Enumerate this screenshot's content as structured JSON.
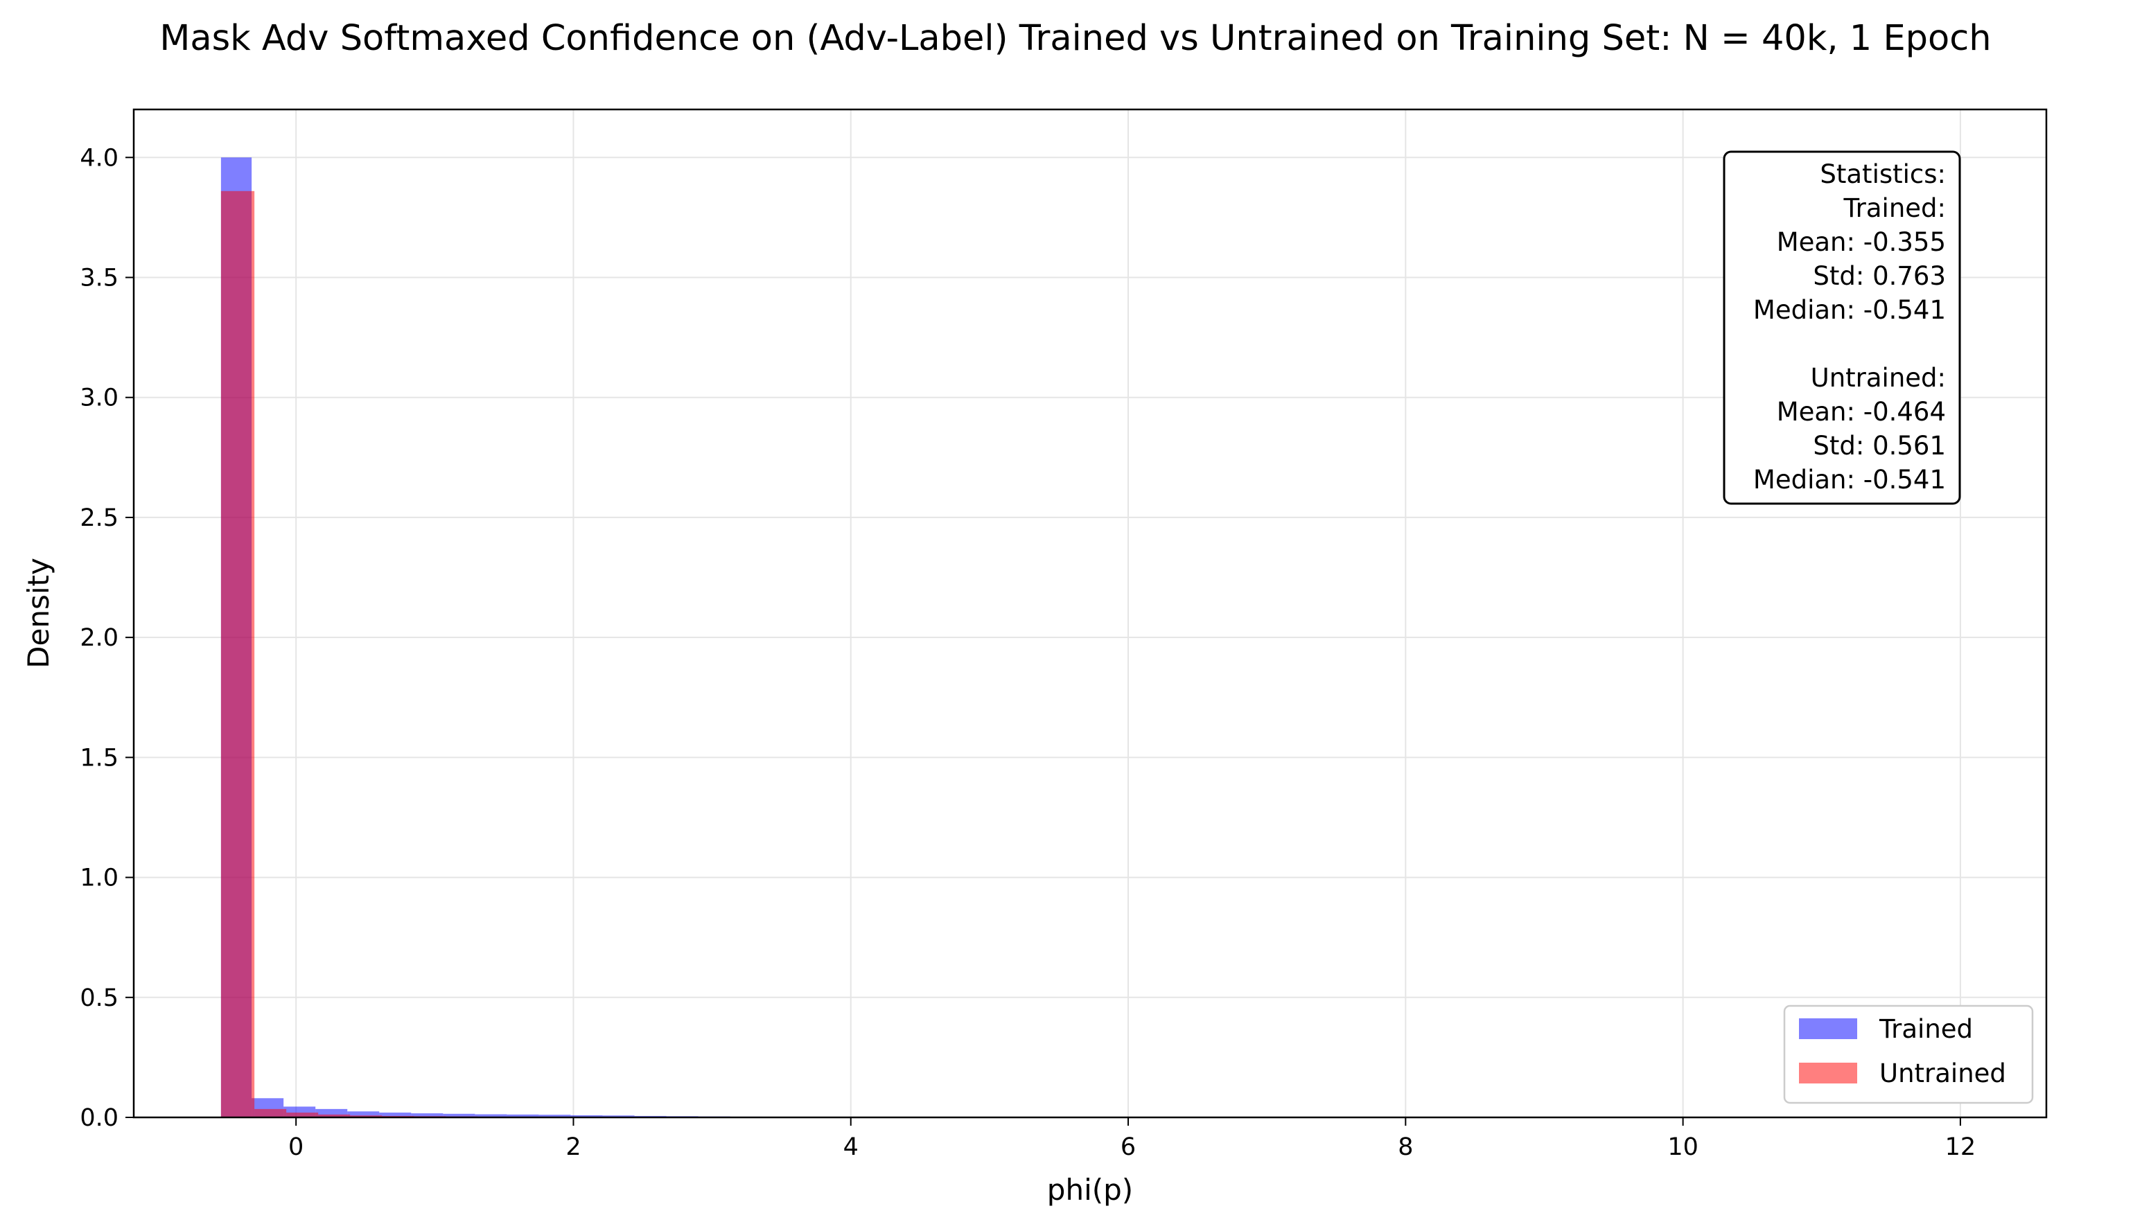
{
  "chart_data": {
    "type": "bar",
    "title": "Mask Adv Softmaxed Confidence on (Adv-Label) Trained vs Untrained on Training Set: N = 40k, 1 Epoch",
    "xlabel": "phi(p)",
    "ylabel": "Density",
    "xlim": [
      -1.17,
      12.62
    ],
    "ylim": [
      0,
      4.2
    ],
    "x_ticks": [
      0,
      2,
      4,
      6,
      8,
      10,
      12
    ],
    "x_tick_labels": [
      "0",
      "2",
      "4",
      "6",
      "8",
      "10",
      "12"
    ],
    "y_ticks": [
      0.0,
      0.5,
      1.0,
      1.5,
      2.0,
      2.5,
      3.0,
      3.5,
      4.0
    ],
    "y_tick_labels": [
      "0.0",
      "0.5",
      "1.0",
      "1.5",
      "2.0",
      "2.5",
      "3.0",
      "3.5",
      "4.0"
    ],
    "grid": true,
    "legend_position": "lower-right",
    "series": [
      {
        "name": "Trained",
        "color": "#0000ff",
        "bins": [
          {
            "x0": -0.541,
            "x1": -0.32,
            "density": 4.0
          },
          {
            "x0": -0.32,
            "x1": -0.09,
            "density": 0.08
          },
          {
            "x0": -0.09,
            "x1": 0.14,
            "density": 0.045
          },
          {
            "x0": 0.14,
            "x1": 0.37,
            "density": 0.035
          },
          {
            "x0": 0.37,
            "x1": 0.6,
            "density": 0.025
          },
          {
            "x0": 0.6,
            "x1": 0.83,
            "density": 0.02
          },
          {
            "x0": 0.83,
            "x1": 1.06,
            "density": 0.017
          },
          {
            "x0": 1.06,
            "x1": 1.29,
            "density": 0.015
          },
          {
            "x0": 1.29,
            "x1": 1.52,
            "density": 0.013
          },
          {
            "x0": 1.52,
            "x1": 1.75,
            "density": 0.012
          },
          {
            "x0": 1.75,
            "x1": 1.98,
            "density": 0.011
          },
          {
            "x0": 1.98,
            "x1": 2.21,
            "density": 0.009
          },
          {
            "x0": 2.21,
            "x1": 2.44,
            "density": 0.008
          },
          {
            "x0": 2.44,
            "x1": 2.67,
            "density": 0.006
          },
          {
            "x0": 2.67,
            "x1": 2.9,
            "density": 0.005
          },
          {
            "x0": 2.9,
            "x1": 3.13,
            "density": 0.004
          },
          {
            "x0": 3.13,
            "x1": 3.36,
            "density": 0.003
          },
          {
            "x0": 3.36,
            "x1": 3.59,
            "density": 0.002
          },
          {
            "x0": 3.59,
            "x1": 3.82,
            "density": 0.002
          }
        ]
      },
      {
        "name": "Untrained",
        "color": "#ff0000",
        "bins": [
          {
            "x0": -0.541,
            "x1": -0.3,
            "density": 3.86
          },
          {
            "x0": -0.3,
            "x1": -0.07,
            "density": 0.035
          },
          {
            "x0": -0.07,
            "x1": 0.16,
            "density": 0.02
          },
          {
            "x0": 0.16,
            "x1": 0.39,
            "density": 0.012
          },
          {
            "x0": 0.39,
            "x1": 0.62,
            "density": 0.008
          },
          {
            "x0": 0.62,
            "x1": 0.85,
            "density": 0.006
          },
          {
            "x0": 0.85,
            "x1": 1.08,
            "density": 0.005
          },
          {
            "x0": 1.08,
            "x1": 1.31,
            "density": 0.004
          },
          {
            "x0": 1.31,
            "x1": 1.54,
            "density": 0.003
          }
        ]
      }
    ],
    "stats_box": {
      "lines": [
        "Statistics:",
        "Trained:",
        "Mean: -0.355",
        "Std: 0.763",
        "Median: -0.541",
        "",
        "Untrained:",
        "Mean: -0.464",
        "Std: 0.561",
        "Median: -0.541"
      ]
    }
  }
}
